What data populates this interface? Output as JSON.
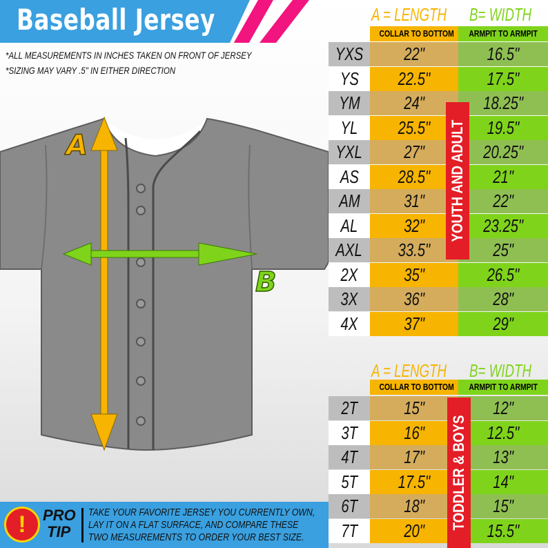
{
  "header": {
    "title": "Baseball Jersey",
    "notes": [
      "*ALL MEASUREMENTS IN INCHES TAKEN ON FRONT OF JERSEY",
      "*SIZING MAY VARY .5\" IN EITHER DIRECTION"
    ]
  },
  "diagram": {
    "label_a": "A",
    "label_b": "B",
    "colors": {
      "length_arrow": "#f7b400",
      "width_arrow": "#7fd41b",
      "jersey": "#8a8a8a"
    }
  },
  "adult_table": {
    "header_a": "A = LENGTH",
    "header_b": "B= WIDTH",
    "sub_a": "COLLAR TO BOTTOM",
    "sub_b": "ARMPIT TO ARMPIT",
    "group_label": "YOUTH AND ADULT",
    "rows": [
      {
        "size": "YXS",
        "length": "22\"",
        "width": "16.5\""
      },
      {
        "size": "YS",
        "length": "22.5\"",
        "width": "17.5\""
      },
      {
        "size": "YM",
        "length": "24\"",
        "width": "18.25\""
      },
      {
        "size": "YL",
        "length": "25.5\"",
        "width": "19.5\""
      },
      {
        "size": "YXL",
        "length": "27\"",
        "width": "20.25\""
      },
      {
        "size": "AS",
        "length": "28.5\"",
        "width": "21\""
      },
      {
        "size": "AM",
        "length": "31\"",
        "width": "22\""
      },
      {
        "size": "AL",
        "length": "32\"",
        "width": "23.25\""
      },
      {
        "size": "AXL",
        "length": "33.5\"",
        "width": "25\""
      },
      {
        "size": "2X",
        "length": "35\"",
        "width": "26.5\""
      },
      {
        "size": "3X",
        "length": "36\"",
        "width": "28\""
      },
      {
        "size": "4X",
        "length": "37\"",
        "width": "29\""
      }
    ]
  },
  "toddler_table": {
    "header_a": "A = LENGTH",
    "header_b": "B= WIDTH",
    "sub_a": "COLLAR TO BOTTOM",
    "sub_b": "ARMPIT TO ARMPIT",
    "group_label": "TODDLER & BOYS",
    "rows": [
      {
        "size": "2T",
        "length": "15\"",
        "width": "12\""
      },
      {
        "size": "3T",
        "length": "16\"",
        "width": "12.5\""
      },
      {
        "size": "4T",
        "length": "17\"",
        "width": "13\""
      },
      {
        "size": "5T",
        "length": "17.5\"",
        "width": "14\""
      },
      {
        "size": "6T",
        "length": "18\"",
        "width": "15\""
      },
      {
        "size": "7T",
        "length": "20\"",
        "width": "15.5\""
      }
    ]
  },
  "pro_tip": {
    "icon": "!",
    "label_1": "PRO",
    "label_2": "TIP",
    "lines": [
      "TAKE YOUR FAVORITE JERSEY YOU CURRENTLY OWN,",
      "LAY IT ON A FLAT SURFACE, AND COMPARE THESE",
      "TWO MEASUREMENTS TO ORDER YOUR BEST SIZE."
    ]
  },
  "colors": {
    "brand_blue": "#3aa0e0",
    "brand_pink": "#f2147f",
    "length_yellow": "#f7b400",
    "length_tan": "#d4ac5c",
    "width_green": "#7fd41b",
    "width_olive": "#8fbf52",
    "size_gray": "#bdbdbd",
    "label_red": "#e41e26"
  }
}
